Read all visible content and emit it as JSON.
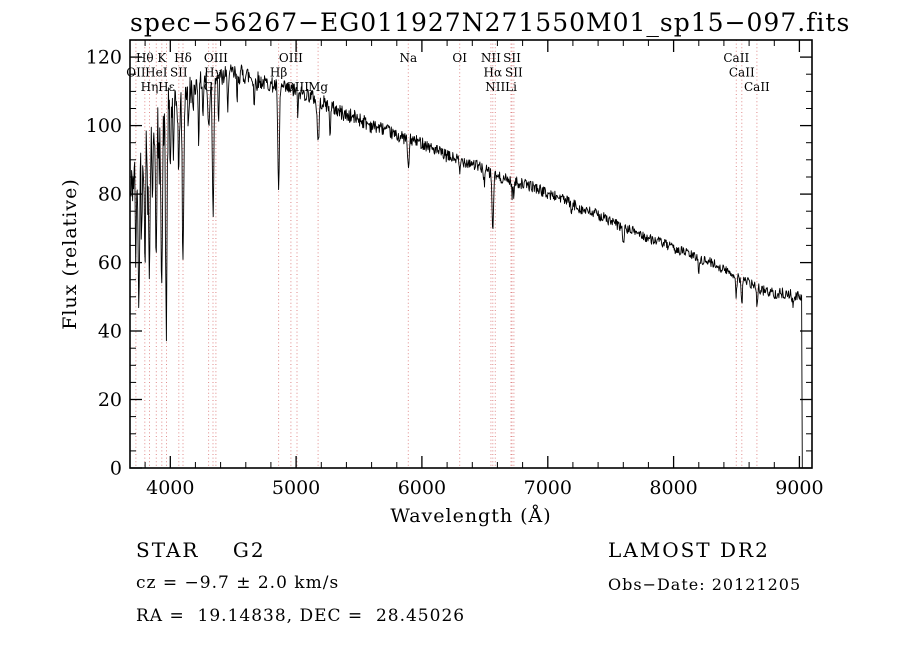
{
  "footer": {
    "class_label": "STAR    G2",
    "survey": "LAMOST DR2",
    "cz": "cz = −9.7 ± 2.0 km/s",
    "obs_date": "Obs−Date: 20121205",
    "coords": "RA =  19.14838, DEC =  28.45026"
  },
  "chart_data": {
    "type": "line",
    "title": "spec−56267−EG011927N271550M01_sp15−097.fits",
    "xlabel": "Wavelength (Å)",
    "ylabel": "Flux (relative)",
    "xlim": [
      3680,
      9100
    ],
    "ylim": [
      0,
      125
    ],
    "x_major_ticks": [
      4000,
      5000,
      6000,
      7000,
      8000,
      9000
    ],
    "x_minor_step": 200,
    "y_major_ticks": [
      0,
      20,
      40,
      60,
      80,
      100,
      120
    ],
    "y_minor_step": 5,
    "line_color": "#000000",
    "marker_line_color": "#e08a8a",
    "grid": false,
    "seed": 42,
    "spectral_lines": [
      {
        "label": "Hθ",
        "wavelength": 3798,
        "row": 1
      },
      {
        "label": "K",
        "wavelength": 3933,
        "row": 1
      },
      {
        "label": "Hδ",
        "wavelength": 4101,
        "row": 1
      },
      {
        "label": "OIII",
        "wavelength": 4363,
        "row": 1
      },
      {
        "label": "OIII",
        "wavelength": 4959,
        "row": 1
      },
      {
        "label": "Na",
        "wavelength": 5892,
        "row": 1
      },
      {
        "label": "OI",
        "wavelength": 6300,
        "row": 1
      },
      {
        "label": "NII",
        "wavelength": 6548,
        "row": 1
      },
      {
        "label": "SII",
        "wavelength": 6716,
        "row": 1
      },
      {
        "label": "CaII",
        "wavelength": 8498,
        "row": 1
      },
      {
        "label": "OII",
        "wavelength": 3727,
        "row": 2
      },
      {
        "label": "HeI",
        "wavelength": 3889,
        "row": 2
      },
      {
        "label": "SII",
        "wavelength": 4068,
        "row": 2
      },
      {
        "label": "Hγ",
        "wavelength": 4340,
        "row": 2
      },
      {
        "label": "Hβ",
        "wavelength": 4861,
        "row": 2
      },
      {
        "label": "Hα",
        "wavelength": 6563,
        "row": 2
      },
      {
        "label": "SII",
        "wavelength": 6731,
        "row": 2
      },
      {
        "label": "CaII",
        "wavelength": 8542,
        "row": 2
      },
      {
        "label": "Hη",
        "wavelength": 3835,
        "row": 3
      },
      {
        "label": "Hε",
        "wavelength": 3970,
        "row": 3
      },
      {
        "label": "G",
        "wavelength": 4305,
        "row": 3
      },
      {
        "label": "OIII",
        "wavelength": 5007,
        "row": 3
      },
      {
        "label": "Mg",
        "wavelength": 5175,
        "row": 3
      },
      {
        "label": "NII",
        "wavelength": 6583,
        "row": 3
      },
      {
        "label": "Li",
        "wavelength": 6708,
        "row": 3
      },
      {
        "label": "CaII",
        "wavelength": 8662,
        "row": 3
      }
    ],
    "continuum": [
      [
        3680,
        78
      ],
      [
        3720,
        88
      ],
      [
        3760,
        92
      ],
      [
        3800,
        96
      ],
      [
        3840,
        98
      ],
      [
        3880,
        100
      ],
      [
        3920,
        102
      ],
      [
        3960,
        103
      ],
      [
        4000,
        105
      ],
      [
        4060,
        107
      ],
      [
        4120,
        110
      ],
      [
        4200,
        112
      ],
      [
        4300,
        114
      ],
      [
        4400,
        114
      ],
      [
        4500,
        115
      ],
      [
        4600,
        115
      ],
      [
        4700,
        113
      ],
      [
        4800,
        112
      ],
      [
        4900,
        111
      ],
      [
        5000,
        110
      ],
      [
        5100,
        109
      ],
      [
        5200,
        107
      ],
      [
        5300,
        105
      ],
      [
        5400,
        103
      ],
      [
        5500,
        102
      ],
      [
        5600,
        100
      ],
      [
        5700,
        99
      ],
      [
        5800,
        97
      ],
      [
        5900,
        96
      ],
      [
        6000,
        95
      ],
      [
        6100,
        93
      ],
      [
        6200,
        91
      ],
      [
        6300,
        90
      ],
      [
        6400,
        89
      ],
      [
        6500,
        87
      ],
      [
        6600,
        85
      ],
      [
        6700,
        84
      ],
      [
        6800,
        83
      ],
      [
        6900,
        82
      ],
      [
        7000,
        80
      ],
      [
        7100,
        79
      ],
      [
        7200,
        77
      ],
      [
        7300,
        75
      ],
      [
        7400,
        74
      ],
      [
        7500,
        72
      ],
      [
        7600,
        70
      ],
      [
        7700,
        69
      ],
      [
        7800,
        67
      ],
      [
        7900,
        66
      ],
      [
        8000,
        64
      ],
      [
        8100,
        63
      ],
      [
        8200,
        61
      ],
      [
        8300,
        60
      ],
      [
        8400,
        58
      ],
      [
        8500,
        56
      ],
      [
        8600,
        54
      ],
      [
        8700,
        52
      ],
      [
        8800,
        51
      ],
      [
        8900,
        51
      ],
      [
        9000,
        50
      ],
      [
        9020,
        50
      ]
    ],
    "absorption_lines": [
      {
        "wavelength": 3727,
        "depth": 28,
        "width": 5
      },
      {
        "wavelength": 3750,
        "depth": 48,
        "width": 5
      },
      {
        "wavelength": 3772,
        "depth": 25,
        "width": 4
      },
      {
        "wavelength": 3798,
        "depth": 34,
        "width": 5
      },
      {
        "wavelength": 3820,
        "depth": 20,
        "width": 4
      },
      {
        "wavelength": 3835,
        "depth": 38,
        "width": 5
      },
      {
        "wavelength": 3860,
        "depth": 22,
        "width": 4
      },
      {
        "wavelength": 3889,
        "depth": 40,
        "width": 5
      },
      {
        "wavelength": 3912,
        "depth": 18,
        "width": 4
      },
      {
        "wavelength": 3933,
        "depth": 46,
        "width": 6
      },
      {
        "wavelength": 3968,
        "depth": 62,
        "width": 6
      },
      {
        "wavelength": 4000,
        "depth": 18,
        "width": 4
      },
      {
        "wavelength": 4026,
        "depth": 16,
        "width": 4
      },
      {
        "wavelength": 4068,
        "depth": 22,
        "width": 5
      },
      {
        "wavelength": 4101,
        "depth": 50,
        "width": 6
      },
      {
        "wavelength": 4144,
        "depth": 12,
        "width": 4
      },
      {
        "wavelength": 4180,
        "depth": 10,
        "width": 4
      },
      {
        "wavelength": 4226,
        "depth": 16,
        "width": 4
      },
      {
        "wavelength": 4260,
        "depth": 10,
        "width": 4
      },
      {
        "wavelength": 4305,
        "depth": 14,
        "width": 8
      },
      {
        "wavelength": 4340,
        "depth": 40,
        "width": 6
      },
      {
        "wavelength": 4383,
        "depth": 14,
        "width": 4
      },
      {
        "wavelength": 4455,
        "depth": 9,
        "width": 4
      },
      {
        "wavelength": 4531,
        "depth": 8,
        "width": 4
      },
      {
        "wavelength": 4668,
        "depth": 8,
        "width": 4
      },
      {
        "wavelength": 4861,
        "depth": 32,
        "width": 6
      },
      {
        "wavelength": 5015,
        "depth": 7,
        "width": 4
      },
      {
        "wavelength": 5175,
        "depth": 12,
        "width": 8
      },
      {
        "wavelength": 5270,
        "depth": 7,
        "width": 5
      },
      {
        "wavelength": 5892,
        "depth": 9,
        "width": 6
      },
      {
        "wavelength": 6300,
        "depth": 4,
        "width": 5
      },
      {
        "wavelength": 6495,
        "depth": 4,
        "width": 4
      },
      {
        "wavelength": 6563,
        "depth": 16,
        "width": 6
      },
      {
        "wavelength": 6717,
        "depth": 4,
        "width": 4
      },
      {
        "wavelength": 6731,
        "depth": 4,
        "width": 4
      },
      {
        "wavelength": 7190,
        "depth": 3,
        "width": 5
      },
      {
        "wavelength": 7600,
        "depth": 4,
        "width": 6
      },
      {
        "wavelength": 8200,
        "depth": 3,
        "width": 5
      },
      {
        "wavelength": 8498,
        "depth": 6,
        "width": 4
      },
      {
        "wavelength": 8542,
        "depth": 8,
        "width": 4
      },
      {
        "wavelength": 8662,
        "depth": 7,
        "width": 4
      },
      {
        "wavelength": 8950,
        "depth": 4,
        "width": 5
      }
    ],
    "noise_profile": [
      {
        "from": 3680,
        "to": 4020,
        "amplitude": 8
      },
      {
        "from": 4020,
        "to": 4200,
        "amplitude": 4.5
      },
      {
        "from": 4200,
        "to": 4700,
        "amplitude": 3
      },
      {
        "from": 4700,
        "to": 5600,
        "amplitude": 2.2
      },
      {
        "from": 5600,
        "to": 6600,
        "amplitude": 1.8
      },
      {
        "from": 6600,
        "to": 7600,
        "amplitude": 1.6
      },
      {
        "from": 7600,
        "to": 8500,
        "amplitude": 1.4
      },
      {
        "from": 8500,
        "to": 9030,
        "amplitude": 1.6
      }
    ],
    "cutoff": {
      "wavelength": 9020,
      "drop_to": 0
    }
  }
}
